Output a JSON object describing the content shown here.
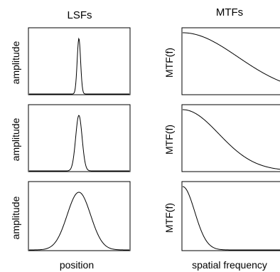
{
  "columns": {
    "left_title": "LSFs",
    "right_title": "MTFs"
  },
  "left_ylabel": "amplitude",
  "right_ylabel": "MTF(f)",
  "left_xlabel": "position",
  "right_xlabel": "spatial frequency",
  "panels": [
    {
      "lsf_width": 2.4,
      "mtf_falloff": 0.55
    },
    {
      "lsf_width": 4.5,
      "mtf_falloff": 0.36
    },
    {
      "lsf_width": 16.5,
      "mtf_falloff": 0.12
    }
  ]
}
